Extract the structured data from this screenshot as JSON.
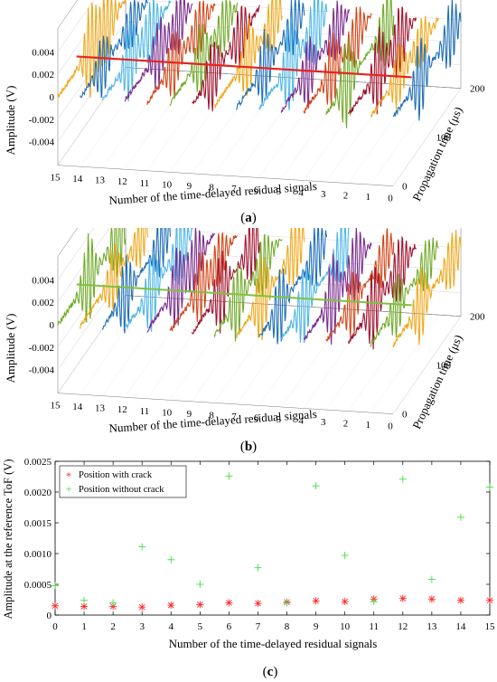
{
  "panels": [
    {
      "caption_open": "(",
      "caption_letter": "a",
      "caption_close": ")",
      "zlabel": "Amplitude (V)",
      "xlabel": "Number of the time-delayed residual signals",
      "ylabel": "Propagation time (μs)",
      "z_ticks": [
        "0.004",
        "0.002",
        "0",
        "-0.002",
        "-0.004"
      ],
      "x_ticks": [
        "15",
        "14",
        "13",
        "12",
        "11",
        "10",
        "9",
        "8",
        "7",
        "6",
        "5",
        "4",
        "3",
        "2",
        "1",
        "0"
      ],
      "y_ticks": [
        "200",
        "100",
        "0"
      ],
      "reference_line_color": "#e8231f",
      "trace_colors": [
        "#f0a81c",
        "#1f6fb8",
        "#4fb7e8",
        "#7b2d8e",
        "#d2471a",
        "#72ab2b",
        "#a2142f"
      ]
    },
    {
      "caption_open": "(",
      "caption_letter": "b",
      "caption_close": ")",
      "zlabel": "Amplitude (V)",
      "xlabel": "Number of the time-delayed residual signals",
      "ylabel": "Propagation time (μs)",
      "z_ticks": [
        "0.004",
        "0.002",
        "0",
        "-0.002",
        "-0.004"
      ],
      "x_ticks": [
        "15",
        "14",
        "13",
        "12",
        "11",
        "10",
        "9",
        "8",
        "7",
        "6",
        "5",
        "4",
        "3",
        "2",
        "1",
        "0"
      ],
      "y_ticks": [
        "200",
        "100",
        "0"
      ],
      "reference_line_color": "#7dc242",
      "trace_colors": [
        "#72ab2b",
        "#f0a81c",
        "#1f6fb8",
        "#4fb7e8",
        "#7b2d8e",
        "#d2471a",
        "#a2142f"
      ]
    }
  ],
  "chart_data": {
    "type": "scatter",
    "caption_open": "(",
    "caption_letter": "c",
    "caption_close": ")",
    "xlabel": "Number of the time-delayed residual signals",
    "ylabel": "Amplitude at the reference ToF (V)",
    "xlim": [
      0,
      15
    ],
    "ylim": [
      0,
      0.0025
    ],
    "x_ticks": [
      "0",
      "1",
      "2",
      "3",
      "4",
      "5",
      "6",
      "7",
      "8",
      "9",
      "10",
      "11",
      "12",
      "13",
      "14",
      "15"
    ],
    "y_ticks": [
      "0",
      "0.0005",
      "0.0010",
      "0.0015",
      "0.0020",
      "0.0025"
    ],
    "legend_position": "top-left",
    "x": [
      0,
      1,
      2,
      3,
      4,
      5,
      6,
      7,
      8,
      9,
      10,
      11,
      12,
      13,
      14,
      15
    ],
    "series": [
      {
        "name": "Position with crack",
        "color": "#ff2a2a",
        "marker": "asterisk",
        "values": [
          0.00015,
          0.00014,
          0.00014,
          0.00013,
          0.00016,
          0.00017,
          0.0002,
          0.00019,
          0.00021,
          0.00023,
          0.00022,
          0.00026,
          0.00027,
          0.00026,
          0.00024,
          0.00024
        ]
      },
      {
        "name": "Position without crack",
        "color": "#44dd44",
        "marker": "plus",
        "values": [
          0.00048,
          0.00024,
          0.0002,
          0.00111,
          0.0009,
          0.0005,
          0.00226,
          0.00077,
          0.0002,
          0.0021,
          0.00097,
          0.00022,
          0.00221,
          0.00058,
          0.00159,
          0.00208
        ]
      }
    ]
  }
}
